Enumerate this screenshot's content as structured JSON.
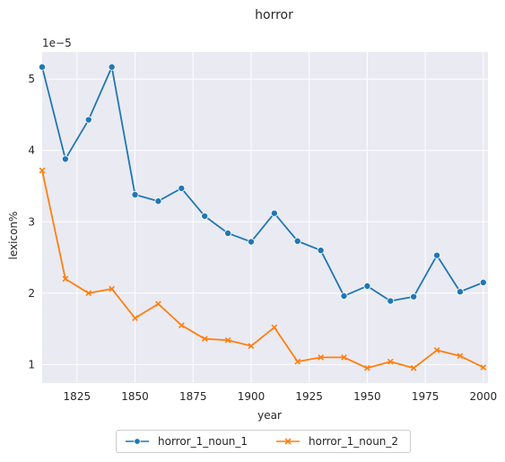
{
  "chart_data": {
    "type": "line",
    "title": "horror",
    "xlabel": "year",
    "ylabel": "lexicon%",
    "y_scale_label": "1e−5",
    "x": [
      1810,
      1820,
      1830,
      1840,
      1850,
      1860,
      1870,
      1880,
      1890,
      1900,
      1910,
      1920,
      1930,
      1940,
      1950,
      1960,
      1970,
      1980,
      1990,
      2000
    ],
    "series": [
      {
        "name": "horror_1_noun_1",
        "color": "#1f77b4",
        "marker": "circle",
        "values": [
          5.17,
          3.88,
          4.43,
          5.17,
          3.38,
          3.29,
          3.47,
          3.08,
          2.84,
          2.72,
          3.12,
          2.73,
          2.6,
          1.96,
          2.1,
          1.89,
          1.95,
          2.53,
          2.02,
          2.15
        ]
      },
      {
        "name": "horror_1_noun_2",
        "color": "#ff7f0e",
        "marker": "x",
        "values": [
          3.72,
          2.2,
          2.0,
          2.06,
          1.65,
          1.85,
          1.55,
          1.36,
          1.34,
          1.26,
          1.52,
          1.04,
          1.1,
          1.1,
          0.95,
          1.04,
          0.95,
          1.2,
          1.12,
          0.96
        ]
      }
    ],
    "xlim": [
      1810,
      2002
    ],
    "ylim": [
      0.74,
      5.38
    ],
    "xticks": [
      1825,
      1850,
      1875,
      1900,
      1925,
      1950,
      1975,
      2000
    ],
    "yticks": [
      1,
      2,
      3,
      4,
      5
    ],
    "grid": true,
    "background": "#eaeaf2",
    "legend_position": "bottom-center"
  }
}
